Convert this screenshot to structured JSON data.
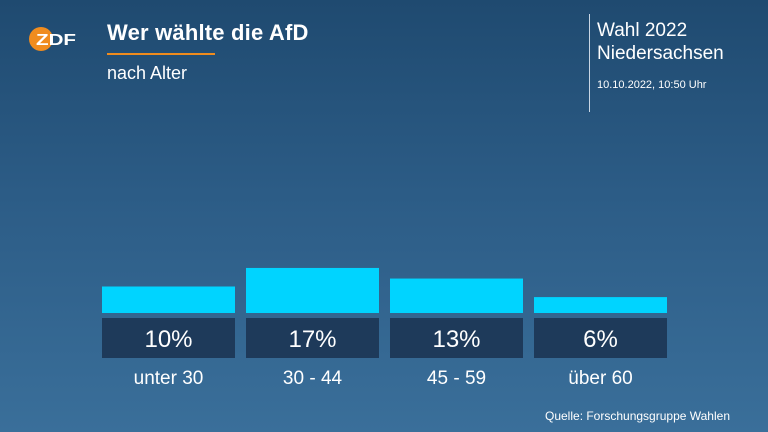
{
  "header": {
    "logo_text": "ZDF",
    "title": "Wer wählte die AfD",
    "subtitle": "nach Alter"
  },
  "election": {
    "line1": "Wahl 2022",
    "line2": "Niedersachsen",
    "timestamp": "10.10.2022, 10:50 Uhr"
  },
  "colors": {
    "bar": "#00d4ff",
    "label_box": "#1e3a5a",
    "accent": "#f08c1e"
  },
  "chart_data": {
    "type": "bar",
    "categories": [
      "unter 30",
      "30 - 44",
      "45 - 59",
      "über 60"
    ],
    "values": [
      10,
      17,
      13,
      6
    ],
    "value_labels": [
      "10%",
      "17%",
      "13%",
      "6%"
    ],
    "title": "Wer wählte die AfD",
    "subtitle": "nach Alter",
    "xlabel": "",
    "ylabel": "",
    "unit": "%",
    "grid": false
  },
  "footer": {
    "source": "Quelle: Forschungsgruppe Wahlen"
  }
}
